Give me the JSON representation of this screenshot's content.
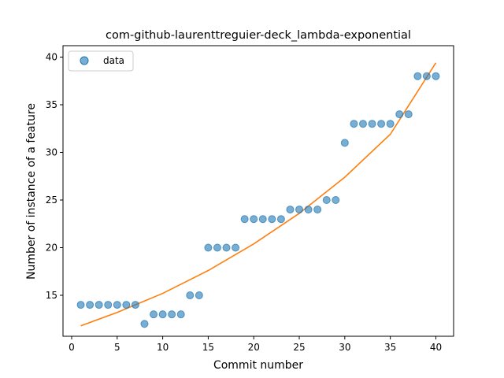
{
  "chart_data": {
    "type": "scatter",
    "title": "com-github-laurenttreguier-deck_lambda-exponential",
    "xlabel": "Commit number",
    "ylabel": "Number of instance of a feature",
    "xlim": [
      -0.95,
      41.95
    ],
    "ylim": [
      10.7,
      41.2
    ],
    "xticks": [
      0,
      5,
      10,
      15,
      20,
      25,
      30,
      35,
      40
    ],
    "yticks": [
      15,
      20,
      25,
      30,
      35,
      40
    ],
    "grid": false,
    "legend": {
      "placement": "top-left",
      "entries": [
        "data"
      ]
    },
    "series": [
      {
        "name": "data",
        "kind": "scatter",
        "color": "#1f77b4",
        "x": [
          1,
          2,
          3,
          4,
          5,
          6,
          7,
          8,
          9,
          10,
          11,
          12,
          13,
          14,
          15,
          16,
          17,
          18,
          19,
          20,
          21,
          22,
          23,
          24,
          25,
          26,
          27,
          28,
          29,
          30,
          31,
          32,
          33,
          34,
          35,
          36,
          37,
          38,
          39,
          40
        ],
        "y": [
          14,
          14,
          14,
          14,
          14,
          14,
          14,
          12,
          13,
          13,
          13,
          13,
          15,
          15,
          20,
          20,
          20,
          20,
          23,
          23,
          23,
          23,
          23,
          24,
          24,
          24,
          24,
          25,
          25,
          31,
          33,
          33,
          33,
          33,
          33,
          34,
          34,
          38,
          38,
          38
        ]
      },
      {
        "kind": "fit-line",
        "color": "#ff7f0e",
        "x": [
          1,
          5,
          10,
          15,
          20,
          25,
          30,
          35,
          40
        ],
        "y": [
          11.8,
          13.2,
          15.2,
          17.6,
          20.4,
          23.6,
          27.4,
          31.9,
          39.4
        ]
      }
    ]
  }
}
